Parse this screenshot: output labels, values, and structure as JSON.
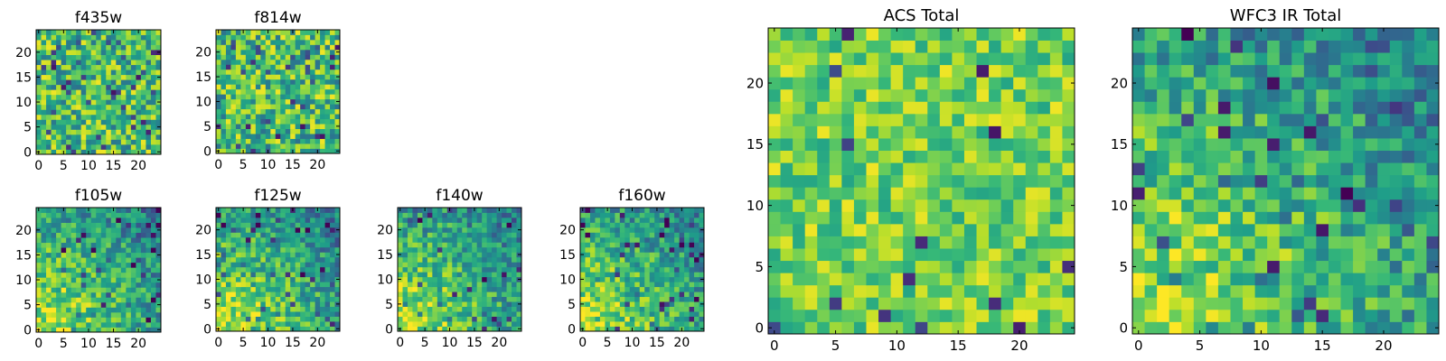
{
  "chart_data": [
    {
      "type": "heatmap",
      "title": "f435w",
      "grid_size": 25,
      "xlim": [
        0,
        24
      ],
      "ylim": [
        0,
        24
      ],
      "xticks": [
        0,
        5,
        10,
        15,
        20
      ],
      "yticks": [
        0,
        5,
        10,
        15,
        20
      ],
      "grid": false,
      "colormap": "viridis",
      "pattern": "noise"
    },
    {
      "type": "heatmap",
      "title": "f814w",
      "grid_size": 25,
      "xlim": [
        0,
        24
      ],
      "ylim": [
        0,
        24
      ],
      "xticks": [
        0,
        5,
        10,
        15,
        20
      ],
      "yticks": [
        0,
        5,
        10,
        15,
        20
      ],
      "grid": false,
      "colormap": "viridis",
      "pattern": "noise"
    },
    {
      "type": "heatmap",
      "title": "f105w",
      "grid_size": 25,
      "xlim": [
        0,
        24
      ],
      "ylim": [
        0,
        24
      ],
      "xticks": [
        0,
        5,
        10,
        15,
        20
      ],
      "yticks": [
        0,
        5,
        10,
        15,
        20
      ],
      "grid": false,
      "colormap": "viridis",
      "pattern": "corner-bright-lower-left"
    },
    {
      "type": "heatmap",
      "title": "f125w",
      "grid_size": 25,
      "xlim": [
        0,
        24
      ],
      "ylim": [
        0,
        24
      ],
      "xticks": [
        0,
        5,
        10,
        15,
        20
      ],
      "yticks": [
        0,
        5,
        10,
        15,
        20
      ],
      "grid": false,
      "colormap": "viridis",
      "pattern": "corner-bright-lower-left"
    },
    {
      "type": "heatmap",
      "title": "f140w",
      "grid_size": 25,
      "xlim": [
        0,
        24
      ],
      "ylim": [
        0,
        24
      ],
      "xticks": [
        0,
        5,
        10,
        15,
        20
      ],
      "yticks": [
        0,
        5,
        10,
        15,
        20
      ],
      "grid": false,
      "colormap": "viridis",
      "pattern": "corner-bright-lower-left"
    },
    {
      "type": "heatmap",
      "title": "f160w",
      "grid_size": 25,
      "xlim": [
        0,
        24
      ],
      "ylim": [
        0,
        24
      ],
      "xticks": [
        0,
        5,
        10,
        15,
        20
      ],
      "yticks": [
        0,
        5,
        10,
        15,
        20
      ],
      "grid": false,
      "colormap": "viridis",
      "pattern": "corner-bright-lower-left"
    },
    {
      "type": "heatmap",
      "title": "ACS Total",
      "grid_size": 25,
      "xlim": [
        0,
        24
      ],
      "ylim": [
        0,
        24
      ],
      "xticks": [
        0,
        5,
        10,
        15,
        20
      ],
      "yticks": [
        0,
        5,
        10,
        15,
        20
      ],
      "grid": false,
      "colormap": "viridis",
      "pattern": "noise-bright"
    },
    {
      "type": "heatmap",
      "title": "WFC3 IR Total",
      "grid_size": 25,
      "xlim": [
        0,
        24
      ],
      "ylim": [
        0,
        24
      ],
      "xticks": [
        0,
        5,
        10,
        15,
        20
      ],
      "yticks": [
        0,
        5,
        10,
        15,
        20
      ],
      "grid": false,
      "colormap": "viridis",
      "pattern": "corner-bright-lower-left"
    }
  ],
  "colors": {
    "viridis_dark": "#440154",
    "viridis_blue": "#31688e",
    "viridis_teal": "#21918c",
    "viridis_green": "#5ec962",
    "viridis_yellow": "#fde725",
    "axis": "#000000"
  }
}
